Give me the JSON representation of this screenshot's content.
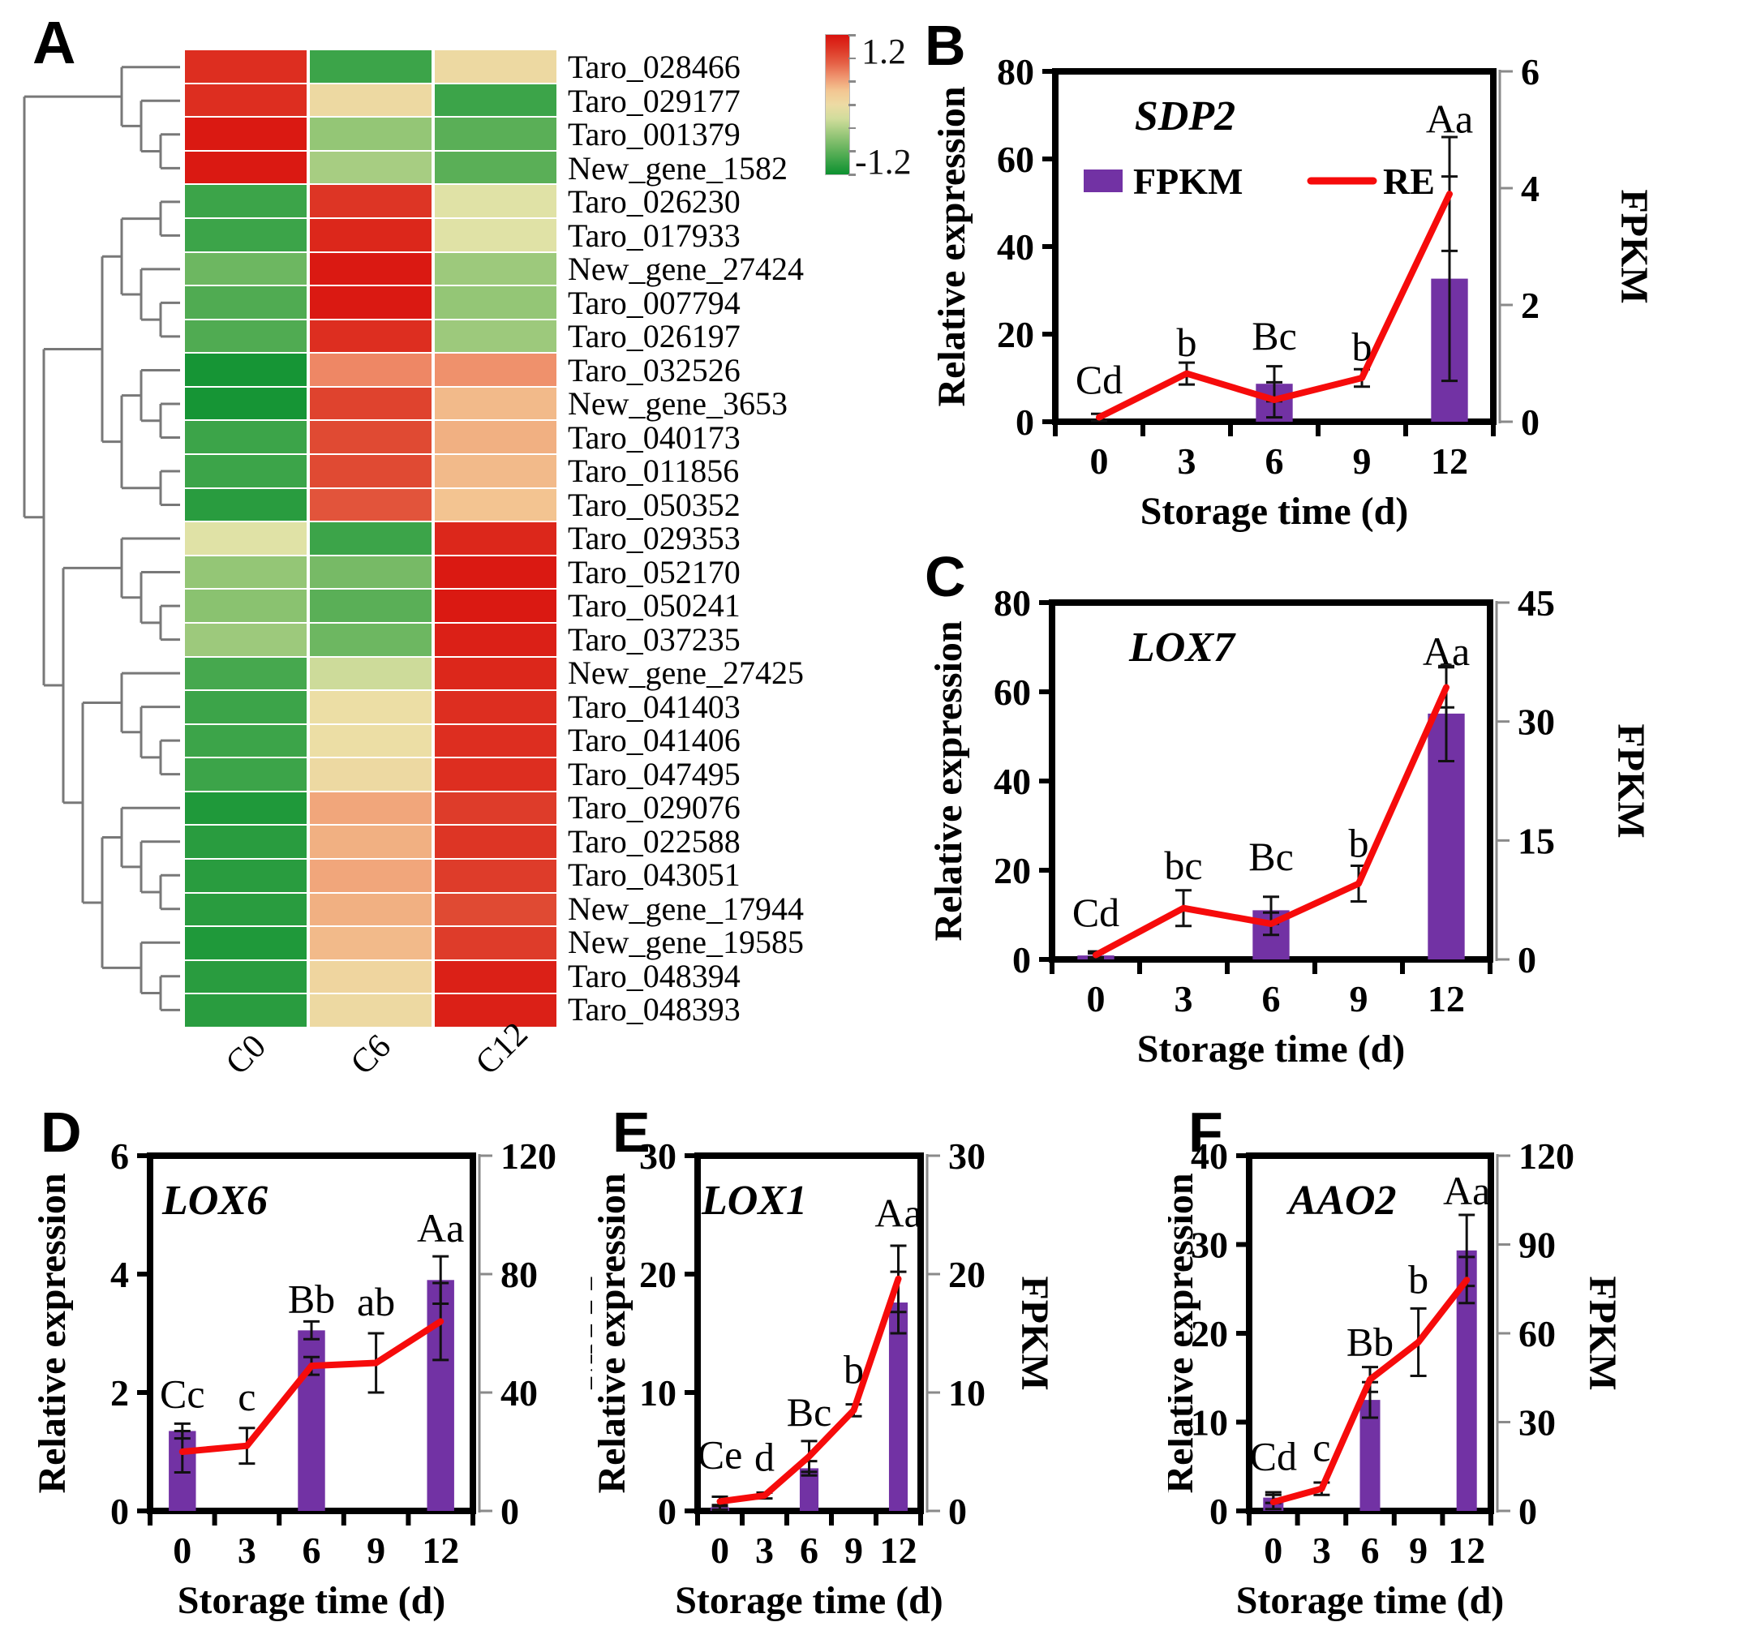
{
  "axes": {
    "y_left": "Relative expression",
    "y_right": "FPKM",
    "x": "Storage time (d)"
  },
  "colors": {
    "bar": "#7232a4",
    "line": "#f60b0b",
    "error": "#111111",
    "frame": "#000000",
    "dendrogram": "#787878",
    "axis_gray": "#8a8a8a"
  },
  "chart_data": [
    {
      "type": "heatmap",
      "panel": "A",
      "columns": [
        "C0",
        "C6",
        "C12"
      ],
      "scale_max": 1.2,
      "scale_min": -1.2,
      "colorbar": {
        "max_label": "1.2",
        "min_label": "-1.2"
      },
      "colormap": [
        [
          -1.25,
          "#0c9130"
        ],
        [
          -0.6,
          "#8ac270"
        ],
        [
          -0.1,
          "#eae6ac"
        ],
        [
          0.3,
          "#f3c491"
        ],
        [
          0.6,
          "#ee8765"
        ],
        [
          0.9,
          "#e04a33"
        ],
        [
          1.3,
          "#d9120d"
        ]
      ],
      "rows": [
        {
          "gene": "Taro_028466",
          "values": [
            1.1,
            -1.0,
            0.05
          ]
        },
        {
          "gene": "Taro_029177",
          "values": [
            1.1,
            0.05,
            -1.0
          ]
        },
        {
          "gene": "Taro_001379",
          "values": [
            1.25,
            -0.55,
            -0.85
          ]
        },
        {
          "gene": "New_gene_1582",
          "values": [
            1.25,
            -0.45,
            -0.85
          ]
        },
        {
          "gene": "Taro_026230",
          "values": [
            -1.0,
            1.05,
            -0.15
          ]
        },
        {
          "gene": "Taro_017933",
          "values": [
            -1.0,
            1.15,
            -0.15
          ]
        },
        {
          "gene": "New_gene_27424",
          "values": [
            -0.75,
            1.25,
            -0.5
          ]
        },
        {
          "gene": "Taro_007794",
          "values": [
            -0.9,
            1.25,
            -0.55
          ]
        },
        {
          "gene": "Taro_026197",
          "values": [
            -0.9,
            1.1,
            -0.5
          ]
        },
        {
          "gene": "Taro_032526",
          "values": [
            -1.2,
            0.6,
            0.55
          ]
        },
        {
          "gene": "New_gene_3653",
          "values": [
            -1.2,
            0.95,
            0.35
          ]
        },
        {
          "gene": "Taro_040173",
          "values": [
            -1.0,
            0.9,
            0.4
          ]
        },
        {
          "gene": "Taro_011856",
          "values": [
            -1.0,
            0.9,
            0.35
          ]
        },
        {
          "gene": "Taro_050352",
          "values": [
            -1.1,
            0.85,
            0.3
          ]
        },
        {
          "gene": "Taro_029353",
          "values": [
            -0.15,
            -1.0,
            1.15
          ]
        },
        {
          "gene": "Taro_052170",
          "values": [
            -0.55,
            -0.7,
            1.25
          ]
        },
        {
          "gene": "Taro_050241",
          "values": [
            -0.6,
            -0.85,
            1.25
          ]
        },
        {
          "gene": "Taro_037235",
          "values": [
            -0.5,
            -0.75,
            1.2
          ]
        },
        {
          "gene": "New_gene_27425",
          "values": [
            -0.95,
            -0.25,
            1.15
          ]
        },
        {
          "gene": "Taro_041403",
          "values": [
            -1.0,
            0.0,
            1.1
          ]
        },
        {
          "gene": "Taro_041406",
          "values": [
            -1.0,
            0.0,
            1.1
          ]
        },
        {
          "gene": "Taro_047495",
          "values": [
            -1.0,
            0.05,
            1.1
          ]
        },
        {
          "gene": "Taro_029076",
          "values": [
            -1.15,
            0.45,
            1.0
          ]
        },
        {
          "gene": "Taro_022588",
          "values": [
            -1.1,
            0.4,
            1.05
          ]
        },
        {
          "gene": "Taro_043051",
          "values": [
            -1.1,
            0.45,
            1.0
          ]
        },
        {
          "gene": "New_gene_17944",
          "values": [
            -1.1,
            0.4,
            0.9
          ]
        },
        {
          "gene": "New_gene_19585",
          "values": [
            -1.15,
            0.35,
            1.0
          ]
        },
        {
          "gene": "Taro_048394",
          "values": [
            -1.1,
            0.1,
            1.2
          ]
        },
        {
          "gene": "Taro_048393",
          "values": [
            -1.1,
            0.05,
            1.2
          ]
        }
      ],
      "dendrogram": [
        [
          0,
          [
            1,
            [
              2,
              3
            ]
          ]
        ],
        [
          [
            [
              [
                4,
                5
              ],
              [
                6,
                [
                  7,
                  8
                ]
              ]
            ],
            [
              [
                9,
                [
                  10,
                  11
                ]
              ],
              [
                12,
                13
              ]
            ]
          ],
          [
            [
              14,
              [
                15,
                [
                  16,
                  17
                ]
              ]
            ],
            [
              [
                18,
                [
                  19,
                  [
                    20,
                    21
                  ]
                ]
              ],
              [
                [
                  22,
                  [
                    23,
                    [
                      24,
                      25
                    ]
                  ]
                ],
                [
                  26,
                  [
                    27,
                    28
                  ]
                ]
              ]
            ]
          ]
        ]
      ]
    },
    {
      "type": "bar-line",
      "panel": "B",
      "title": "SDP2",
      "categories": [
        "0",
        "3",
        "6",
        "9",
        "12"
      ],
      "left_axis": {
        "max": 80,
        "ticks": [
          0,
          20,
          40,
          60,
          80
        ]
      },
      "right_axis": {
        "max": 6,
        "ticks": [
          0,
          2,
          4,
          6
        ]
      },
      "series": [
        {
          "name": "FPKM",
          "type": "bar",
          "axis": "right",
          "values": [
            0,
            0,
            0.65,
            0,
            2.45
          ],
          "errors": [
            0,
            0,
            0.3,
            0,
            1.75
          ]
        },
        {
          "name": "RE",
          "type": "line",
          "axis": "left",
          "values": [
            1,
            11,
            5,
            10,
            52
          ],
          "errors": [
            0.8,
            2.5,
            4,
            2,
            13
          ]
        }
      ],
      "sig_letters": [
        "Cd",
        "b",
        "Bc",
        "b",
        "Aa"
      ],
      "sig_y": [
        6.5,
        15,
        16.5,
        14,
        66
      ],
      "legend": true
    },
    {
      "type": "bar-line",
      "panel": "C",
      "title": "LOX7",
      "categories": [
        "0",
        "3",
        "6",
        "9",
        "12"
      ],
      "left_axis": {
        "max": 80,
        "ticks": [
          0,
          20,
          40,
          60,
          80
        ]
      },
      "right_axis": {
        "max": 45,
        "ticks": [
          0,
          15,
          30,
          45
        ]
      },
      "series": [
        {
          "name": "FPKM",
          "type": "bar",
          "axis": "right",
          "values": [
            0.5,
            0,
            6.2,
            0,
            31
          ],
          "errors": [
            0.25,
            0,
            1.7,
            0,
            6
          ]
        },
        {
          "name": "RE",
          "type": "line",
          "axis": "left",
          "values": [
            1,
            11.5,
            8,
            17,
            61
          ],
          "errors": [
            0.8,
            4,
            2.5,
            4,
            4.5
          ]
        }
      ],
      "sig_letters": [
        "Cd",
        "bc",
        "Bc",
        "b",
        "Aa"
      ],
      "sig_y": [
        7.5,
        18,
        20,
        23,
        66
      ],
      "legend": false
    },
    {
      "type": "bar-line",
      "panel": "D",
      "title": "LOX6",
      "categories": [
        "0",
        "3",
        "6",
        "9",
        "12"
      ],
      "left_axis": {
        "max": 6,
        "ticks": [
          0,
          2,
          4,
          6
        ]
      },
      "right_axis": {
        "max": 120,
        "ticks": [
          0,
          40,
          80,
          120
        ]
      },
      "series": [
        {
          "name": "FPKM",
          "type": "bar",
          "axis": "right",
          "values": [
            27,
            0,
            61,
            0,
            78
          ],
          "errors": [
            2.5,
            0,
            3,
            0,
            8
          ]
        },
        {
          "name": "RE",
          "type": "line",
          "axis": "left",
          "values": [
            1.0,
            1.1,
            2.45,
            2.5,
            3.2
          ],
          "errors": [
            0.35,
            0.3,
            0.15,
            0.5,
            0.65
          ]
        }
      ],
      "sig_letters": [
        "Cc",
        "c",
        "Bb",
        "ab",
        "Aa"
      ],
      "sig_y": [
        1.75,
        1.7,
        3.35,
        3.3,
        4.55
      ],
      "legend": false
    },
    {
      "type": "bar-line",
      "panel": "E",
      "title": "LOX1",
      "categories": [
        "0",
        "3",
        "6",
        "9",
        "12"
      ],
      "left_axis": {
        "max": 30,
        "ticks": [
          0,
          10,
          20,
          30
        ]
      },
      "right_axis": {
        "max": 30,
        "ticks": [
          0,
          10,
          20,
          30
        ]
      },
      "series": [
        {
          "name": "FPKM",
          "type": "bar",
          "axis": "right",
          "values": [
            0.3,
            0,
            3.6,
            0,
            17.6
          ],
          "errors": [
            0.2,
            0,
            0.6,
            0,
            2.6
          ]
        },
        {
          "name": "RE",
          "type": "line",
          "axis": "left",
          "values": [
            0.8,
            1.3,
            4.6,
            8.5,
            19.6
          ],
          "errors": [
            0.4,
            0.25,
            1.3,
            0.5,
            2.8
          ]
        }
      ],
      "sig_letters": [
        "Ce",
        "d",
        "Bc",
        "b",
        "Aa"
      ],
      "sig_y": [
        3.6,
        3.4,
        7.2,
        10.8,
        24
      ],
      "legend": false
    },
    {
      "type": "bar-line",
      "panel": "F",
      "title": "AAO2",
      "categories": [
        "0",
        "3",
        "6",
        "9",
        "12"
      ],
      "left_axis": {
        "max": 40,
        "ticks": [
          0,
          10,
          20,
          30,
          40
        ]
      },
      "right_axis": {
        "max": 120,
        "ticks": [
          0,
          30,
          60,
          90,
          120
        ]
      },
      "series": [
        {
          "name": "FPKM",
          "type": "bar",
          "axis": "right",
          "values": [
            4.5,
            0,
            37.5,
            0,
            88
          ],
          "errors": [
            1.8,
            0,
            6,
            0,
            12
          ]
        },
        {
          "name": "RE",
          "type": "line",
          "axis": "left",
          "values": [
            1,
            2.5,
            14.8,
            19,
            26
          ],
          "errors": [
            0.8,
            0.7,
            1.4,
            3.8,
            2.6
          ]
        }
      ],
      "sig_letters": [
        "Cd",
        "c",
        "Bb",
        "b",
        "Aa"
      ],
      "sig_y": [
        4.6,
        5.6,
        17.5,
        24.5,
        34.5
      ],
      "legend": false
    }
  ]
}
